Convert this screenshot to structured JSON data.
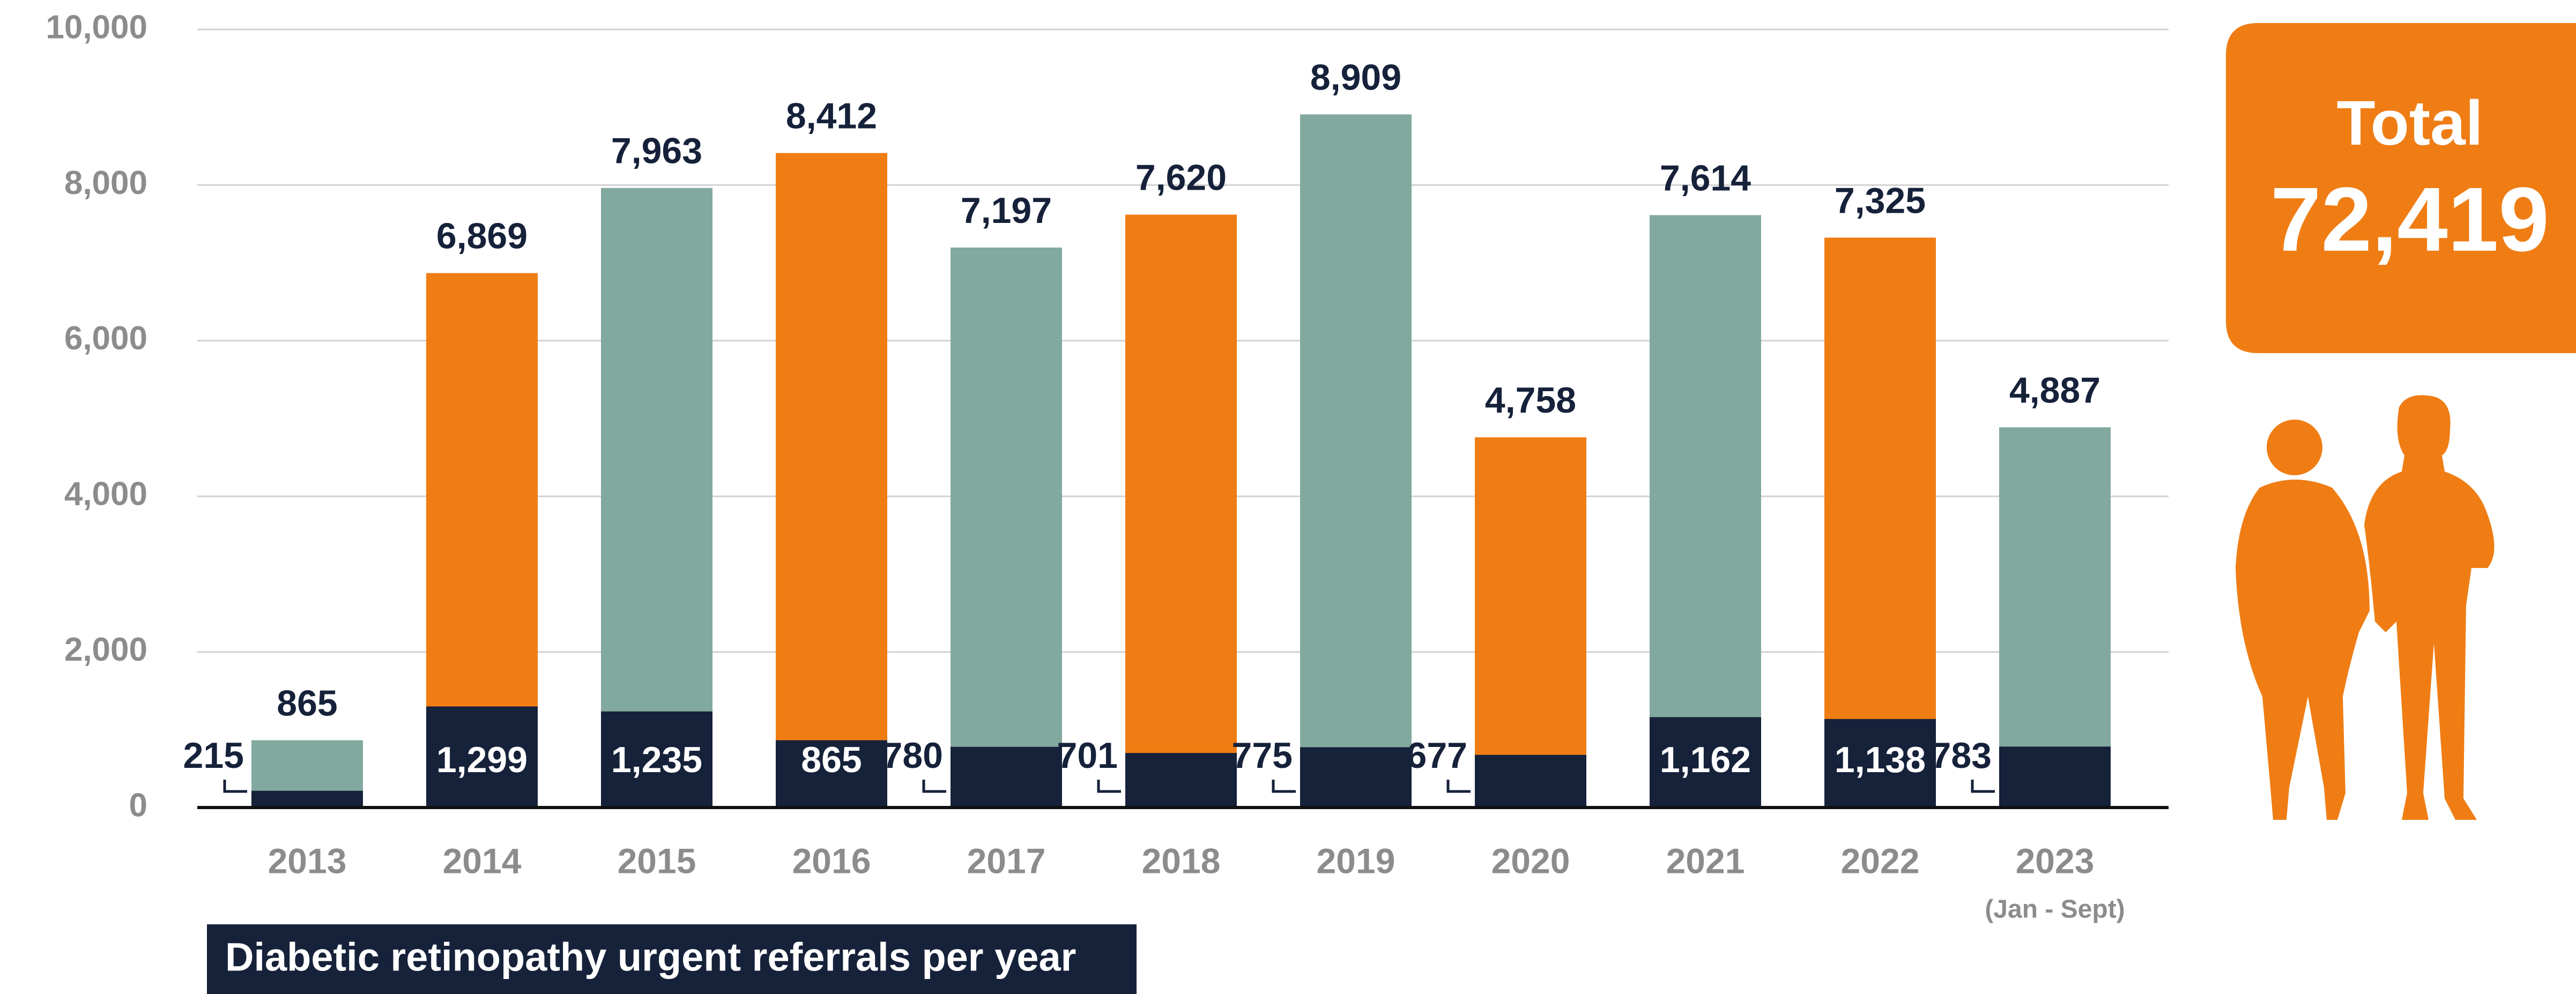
{
  "chart_data": {
    "type": "bar",
    "title": "Diabetic retinopathy urgent referrals per year",
    "categories": [
      "2013",
      "2014",
      "2015",
      "2016",
      "2017",
      "2018",
      "2019",
      "2020",
      "2021",
      "2022",
      "2023"
    ],
    "annotations": [
      "(Jan - Sept)"
    ],
    "series": [
      {
        "colors": [
          "#82a99f",
          "#ef7d14",
          "#82a99f",
          "#ef7d14",
          "#82a99f",
          "#ef7d14",
          "#82a99f",
          "#ef7d14",
          "#82a99f",
          "#ef7d14",
          "#82a99f"
        ],
        "values": [
          865,
          6869,
          7963,
          8412,
          7197,
          7620,
          8909,
          4758,
          7614,
          7325,
          4887
        ],
        "value_labels": [
          "865",
          "6,869",
          "7,963",
          "8,412",
          "7,197",
          "7,620",
          "8,909",
          "4,758",
          "7,614",
          "7,325",
          "4,887"
        ]
      },
      {
        "color": "#16213a",
        "values": [
          215,
          1299,
          1235,
          865,
          780,
          701,
          775,
          677,
          1162,
          1138,
          783
        ],
        "value_labels": [
          "215",
          "1,299",
          "1,235",
          "865",
          "780",
          "701",
          "775",
          "677",
          "1,162",
          "1,138",
          "783"
        ]
      }
    ],
    "ylim": [
      0,
      10000
    ],
    "yticks": [
      0,
      {
        "value": 2000,
        "label": "2,000"
      },
      {
        "value": 4000,
        "label": "4,000"
      },
      {
        "value": 6000,
        "label": "6,000"
      },
      {
        "value": 8000,
        "label": "8,000"
      },
      {
        "value": 10000,
        "label": "10,000"
      }
    ],
    "grid": true,
    "total": {
      "label": "Total",
      "value": "72,419"
    }
  }
}
